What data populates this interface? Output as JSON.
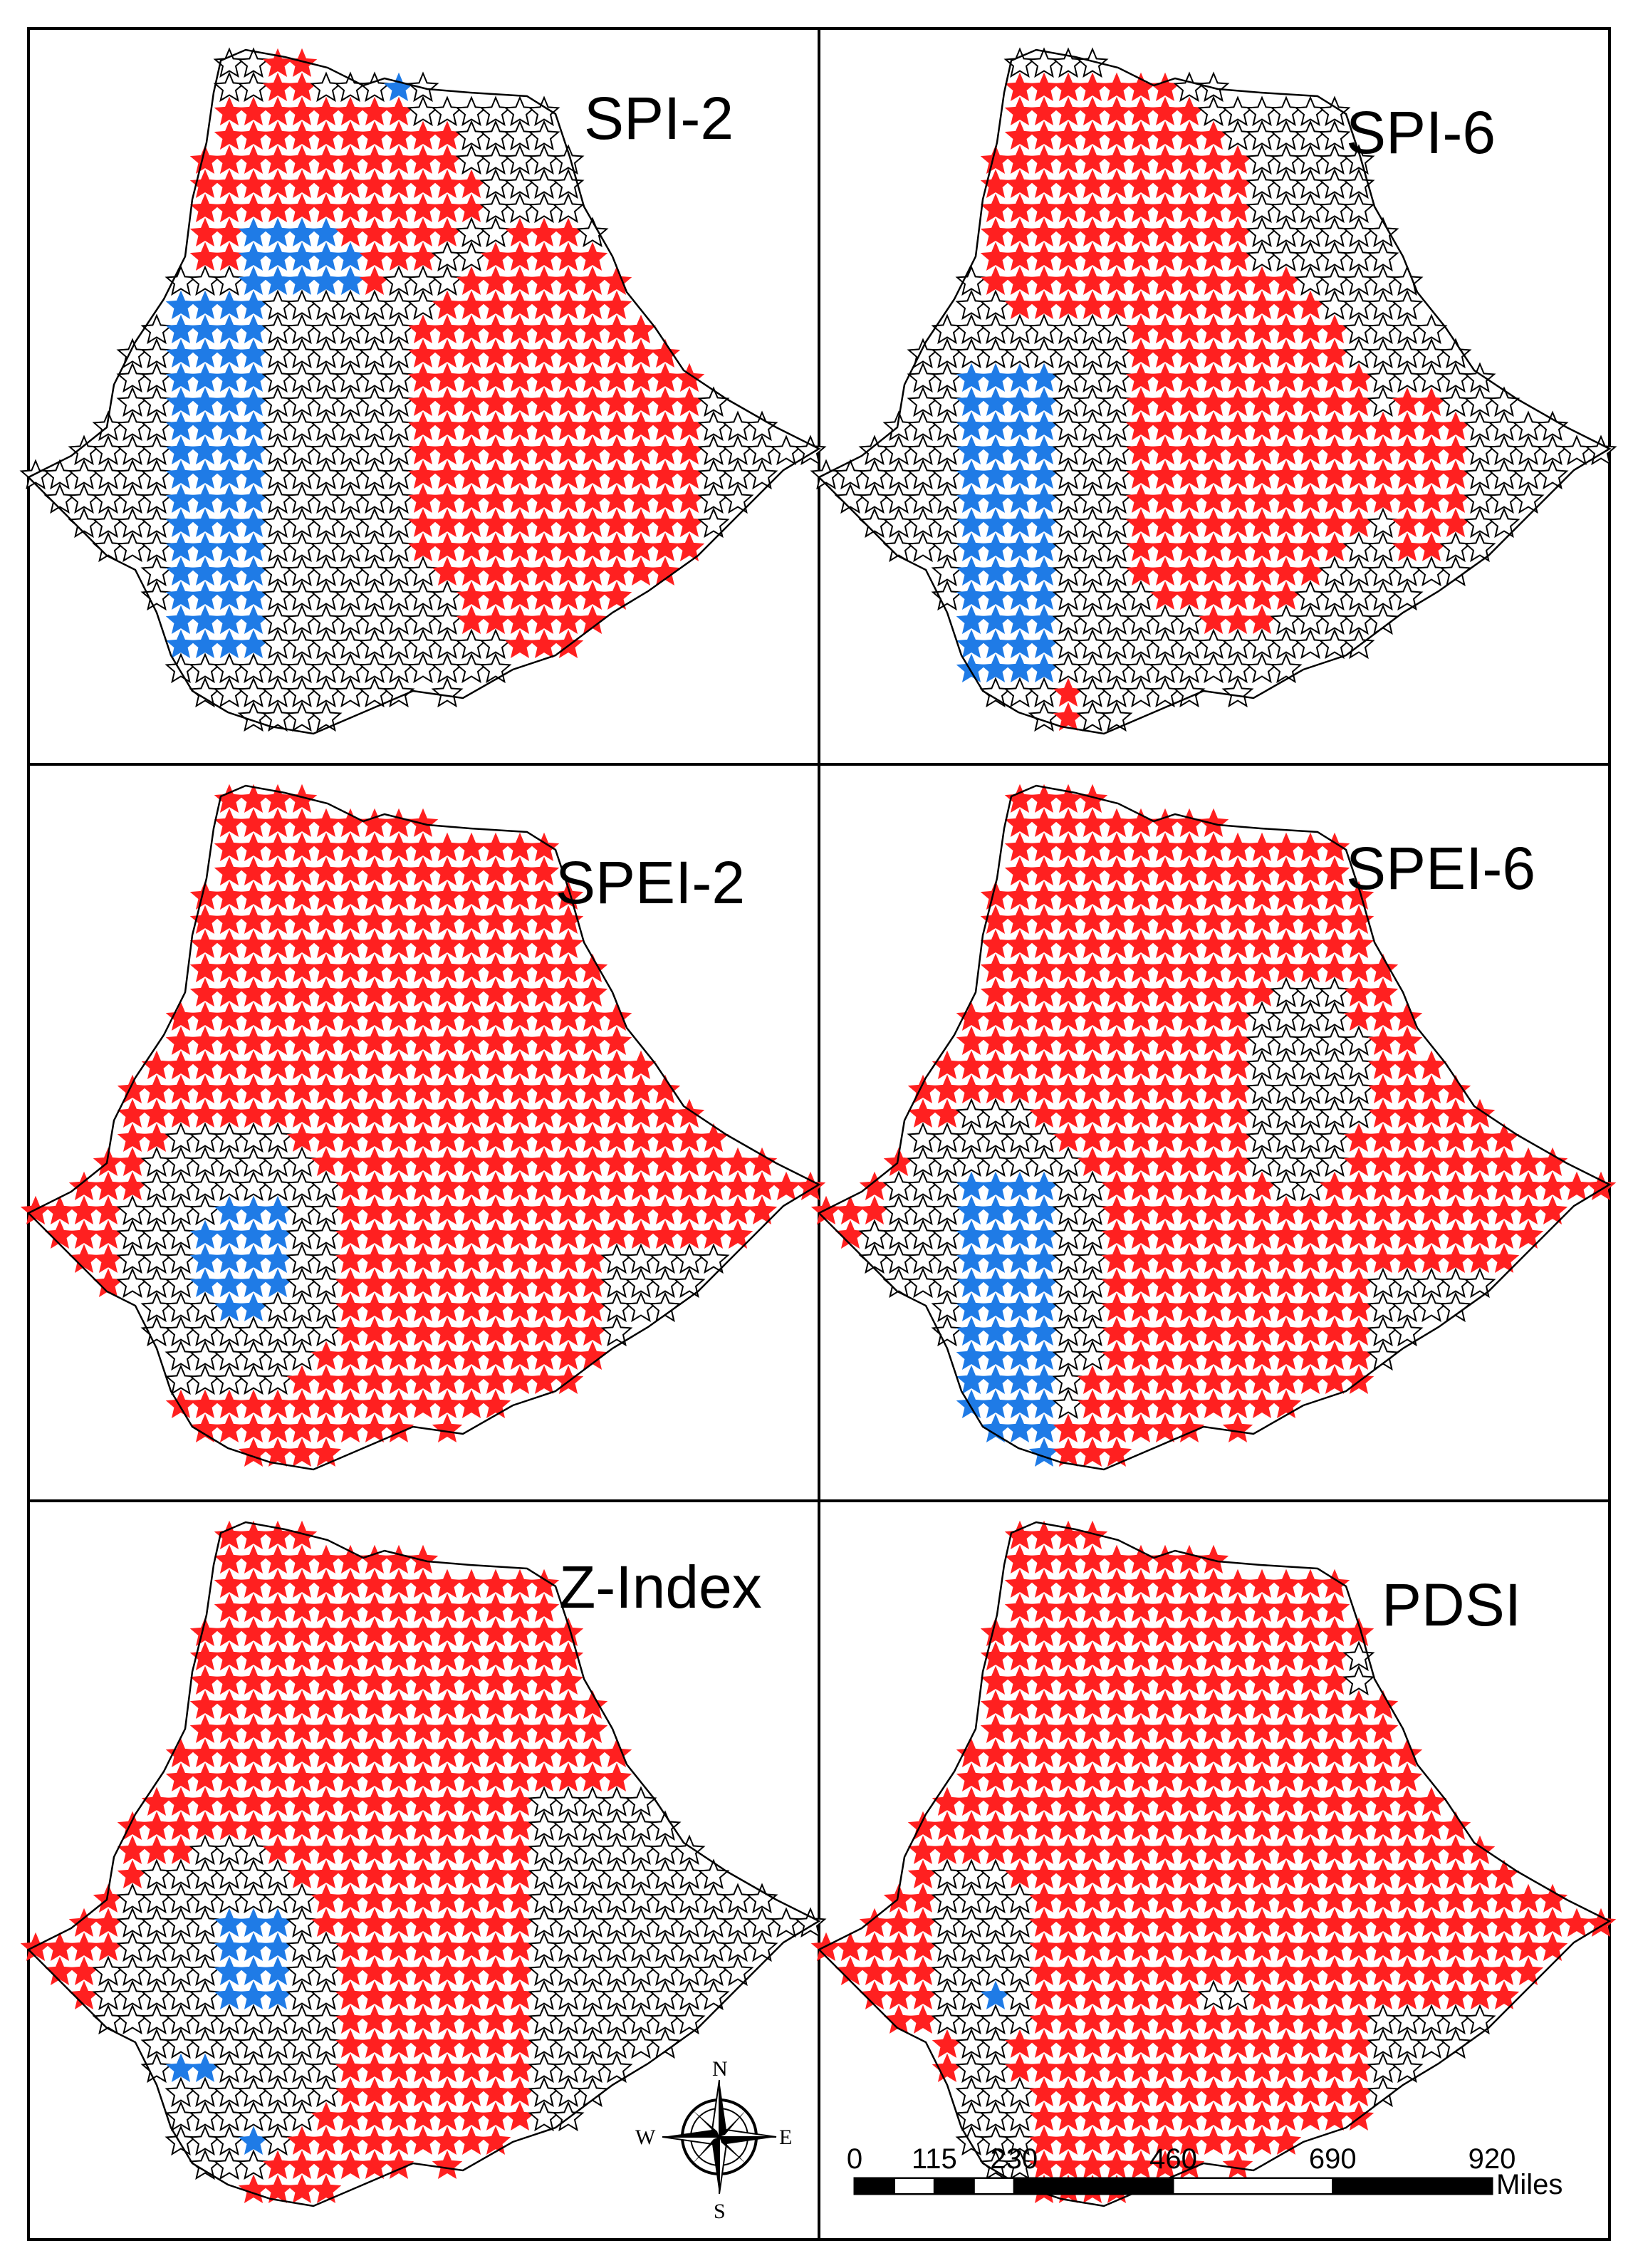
{
  "figure": {
    "panels": [
      {
        "id": "spi2",
        "title": "SPI-2"
      },
      {
        "id": "spi6",
        "title": "SPI-6"
      },
      {
        "id": "spei2",
        "title": "SPEI-2"
      },
      {
        "id": "spei6",
        "title": "SPEI-6"
      },
      {
        "id": "zindex",
        "title": "Z-Index"
      },
      {
        "id": "pdsi",
        "title": "PDSI"
      }
    ],
    "marker_colors": {
      "red": "#ff2020",
      "blue": "#1f7be6",
      "hollow": "#ffffff",
      "outline": "#000000"
    },
    "compass": {
      "north": "N",
      "south": "S",
      "east": "E",
      "west": "W"
    },
    "scale_bar": {
      "ticks": [
        "0",
        "115",
        "230",
        "460",
        "690",
        "920"
      ],
      "tick_values": [
        0,
        115,
        230,
        460,
        690,
        920
      ],
      "unit": "Miles"
    }
  }
}
